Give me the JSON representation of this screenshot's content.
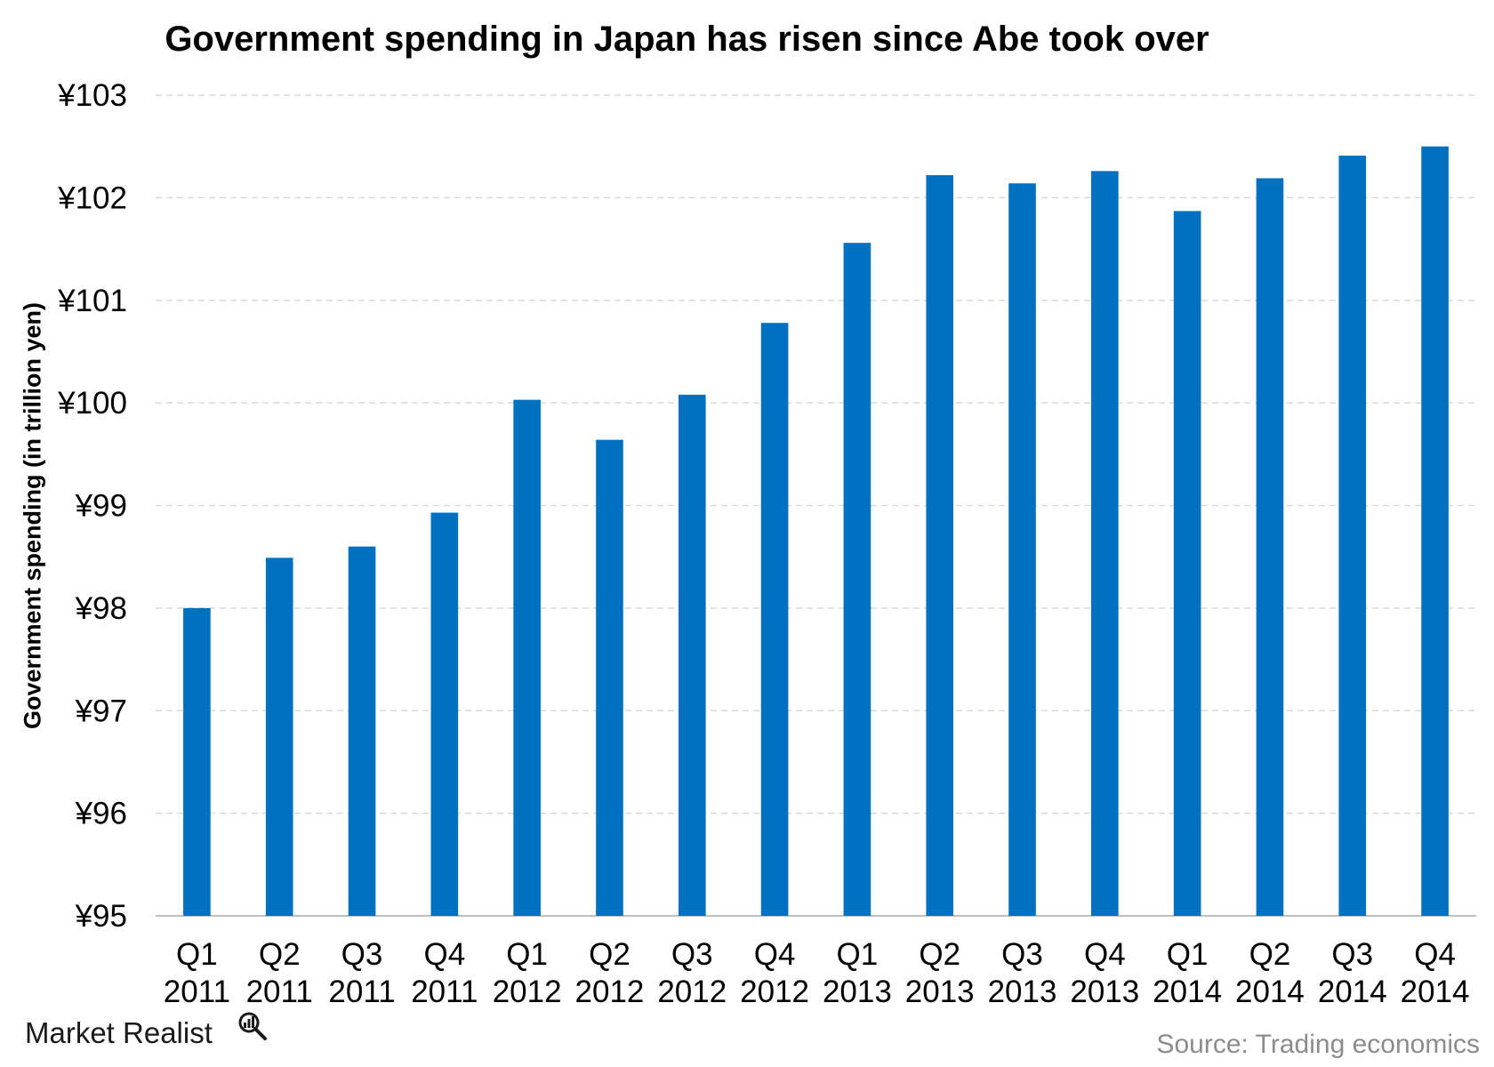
{
  "chart_data": {
    "type": "bar",
    "title": "Government spending in Japan has risen since Abe took over",
    "xlabel": "",
    "ylabel": "Government spending (in trillion yen)",
    "ylim": [
      95,
      103
    ],
    "y_ticks": [
      95,
      96,
      97,
      98,
      99,
      100,
      101,
      102,
      103
    ],
    "y_tick_prefix": "¥",
    "grid": true,
    "categories": [
      [
        "Q1",
        "2011"
      ],
      [
        "Q2",
        "2011"
      ],
      [
        "Q3",
        "2011"
      ],
      [
        "Q4",
        "2011"
      ],
      [
        "Q1",
        "2012"
      ],
      [
        "Q2",
        "2012"
      ],
      [
        "Q3",
        "2012"
      ],
      [
        "Q4",
        "2012"
      ],
      [
        "Q1",
        "2013"
      ],
      [
        "Q2",
        "2013"
      ],
      [
        "Q3",
        "2013"
      ],
      [
        "Q4",
        "2013"
      ],
      [
        "Q1",
        "2014"
      ],
      [
        "Q2",
        "2014"
      ],
      [
        "Q3",
        "2014"
      ],
      [
        "Q4",
        "2014"
      ]
    ],
    "values": [
      98.0,
      98.49,
      98.6,
      98.93,
      100.03,
      99.64,
      100.08,
      100.78,
      101.56,
      102.22,
      102.14,
      102.26,
      101.87,
      102.19,
      102.41,
      102.5
    ],
    "bar_color": "#0070c0",
    "gridline_color": "#d9d9d9"
  },
  "footer": {
    "brand": "Market Realist",
    "brand_icon": "magnifier-chart-icon",
    "source": "Source: Trading economics"
  }
}
